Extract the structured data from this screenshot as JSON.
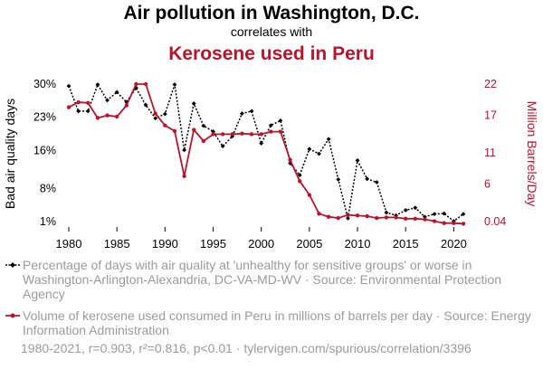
{
  "header": {
    "title": "Air pollution in Washington, D.C.",
    "subtitle": "correlates with",
    "title2": "Kerosene used in Peru"
  },
  "chart_data": {
    "type": "line",
    "x": [
      1980,
      1981,
      1982,
      1983,
      1984,
      1985,
      1986,
      1987,
      1988,
      1989,
      1990,
      1991,
      1992,
      1993,
      1994,
      1995,
      1996,
      1997,
      1998,
      1999,
      2000,
      2001,
      2002,
      2003,
      2004,
      2005,
      2006,
      2007,
      2008,
      2009,
      2010,
      2011,
      2012,
      2013,
      2014,
      2015,
      2016,
      2017,
      2018,
      2019,
      2020,
      2021
    ],
    "xticks": [
      "1980",
      "1985",
      "1990",
      "1995",
      "2000",
      "2005",
      "2010",
      "2015",
      "2020"
    ],
    "xlim": [
      1979.5,
      2021.5
    ],
    "series": [
      {
        "name": "Bad air quality days",
        "axis": "left",
        "color": "#000000",
        "values": [
          29.6,
          24.3,
          24.3,
          29.9,
          26.6,
          28.3,
          26.2,
          29.2,
          25.6,
          22.8,
          23.7,
          29.9,
          16.1,
          25.9,
          21.2,
          20.0,
          16.9,
          19.0,
          23.8,
          24.3,
          17.5,
          21.3,
          22.3,
          13.3,
          10.8,
          16.3,
          15.3,
          18.4,
          9.9,
          1.7,
          13.9,
          10.0,
          9.3,
          2.9,
          2.3,
          3.4,
          3.9,
          2.0,
          2.6,
          2.7,
          1.1,
          2.6
        ]
      },
      {
        "name": "Million Barrels/Day",
        "axis": "right",
        "color": "#b5162e",
        "values": [
          18.3,
          19.1,
          19.0,
          16.6,
          17.0,
          16.8,
          18.6,
          22.0,
          22.0,
          17.3,
          15.4,
          14.5,
          7.3,
          14.7,
          12.9,
          14.0,
          14.0,
          14.0,
          14.1,
          14.0,
          14.0,
          14.4,
          14.4,
          9.9,
          6.5,
          4.3,
          1.3,
          0.8,
          0.6,
          1.1,
          1.0,
          0.9,
          0.6,
          0.7,
          0.7,
          0.5,
          0.5,
          0.4,
          0.1,
          -0.2,
          -0.2,
          -0.3
        ]
      }
    ],
    "left_axis": {
      "label": "Bad air quality days",
      "ticks": [
        "1%",
        "8%",
        "16%",
        "23%",
        "30%"
      ],
      "tick_values": [
        1,
        8,
        16,
        23,
        30
      ],
      "ylim": [
        1,
        30
      ]
    },
    "right_axis": {
      "label": "Million Barrels/Day",
      "ticks": [
        "0.04",
        "6",
        "11",
        "17",
        "22"
      ],
      "tick_values": [
        0.04,
        6,
        11,
        17,
        22
      ],
      "ylim": [
        0.04,
        22
      ]
    }
  },
  "legend": [
    {
      "text": "Percentage of days with air quality at 'unhealthy for sensitive groups' or worse in Washington-Arlington-Alexandria, DC-VA-MD-WV · Source: Environmental Protection Agency",
      "color": "#000000",
      "icon": "black-diamond-line-icon"
    },
    {
      "text": "Volume of kerosene used consumed in Peru in millions of barrels per day · Source: Energy Information Administration",
      "color": "#b5162e",
      "icon": "red-circle-line-icon"
    }
  ],
  "footer": "1980-2021, r=0.903, r²=0.816, p<0.01 · tylervigen.com/spurious/correlation/3396"
}
